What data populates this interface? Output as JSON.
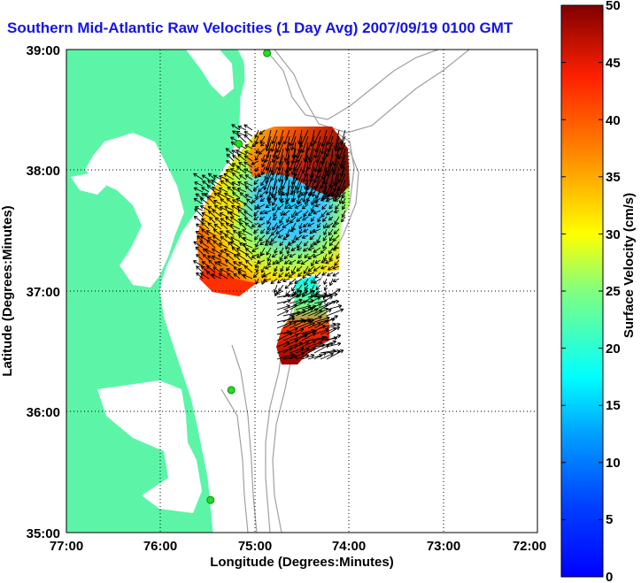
{
  "title": "Southern Mid-Atlantic Raw Velocities (1 Day Avg) 2007/09/19 0100 GMT",
  "map": {
    "x_label": "Longitude (Degrees:Minutes)",
    "y_label": "Latitude (Degrees:Minutes)",
    "lon_range": [
      -77,
      -72
    ],
    "lat_range": [
      35,
      39
    ],
    "lon_ticks": [
      "77:00",
      "76:00",
      "75:00",
      "74:00",
      "73:00",
      "72:00"
    ],
    "lat_ticks": [
      "39:00",
      "38:00",
      "37:00",
      "36:00",
      "35:00"
    ],
    "grid_lines": "dotted",
    "land_color": "#5cf5a8",
    "ocean_color": "#ffffff",
    "bathymetry_color": "#a0a0a0",
    "station_markers": [
      {
        "lon": -74.87,
        "lat": 38.97
      },
      {
        "lon": -75.17,
        "lat": 38.22
      },
      {
        "lon": -75.25,
        "lat": 36.18
      },
      {
        "lon": -75.47,
        "lat": 35.27
      }
    ]
  },
  "colorbar": {
    "label": "Surface Velocity (cm/s)",
    "min": 0,
    "max": 50,
    "ticks": [
      "0",
      "5",
      "10",
      "15",
      "20",
      "25",
      "30",
      "35",
      "40",
      "45",
      "50"
    ],
    "colormap": "jet"
  }
}
